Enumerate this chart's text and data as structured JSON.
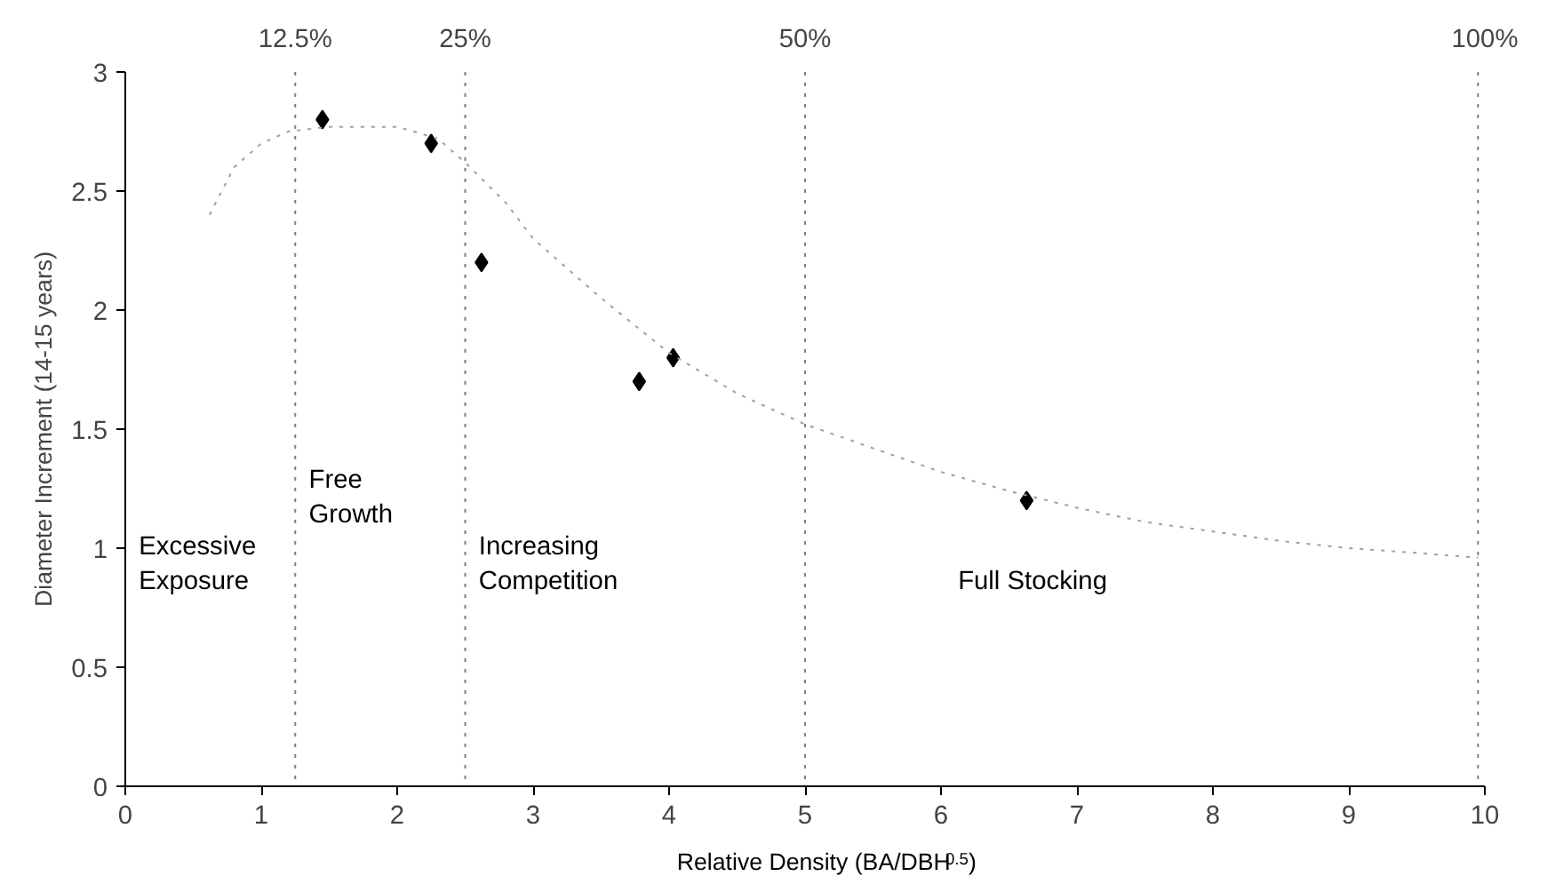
{
  "chart_data": {
    "type": "scatter",
    "xlabel": "Relative Density (BA/DBH$^{0.5}$)",
    "ylabel": "Diameter Increment (14-15 years)",
    "xlim": [
      0,
      10
    ],
    "ylim": [
      0,
      3
    ],
    "xticks": [
      0,
      1,
      2,
      3,
      4,
      5,
      6,
      7,
      8,
      9,
      10
    ],
    "yticks": [
      0,
      0.5,
      1,
      1.5,
      2,
      2.5,
      3
    ],
    "x2lim": [
      0,
      100
    ],
    "x2ticks": [
      {
        "value": 12.5,
        "label": "12.5%"
      },
      {
        "value": 25,
        "label": "25%"
      },
      {
        "value": 50,
        "label": "50%"
      },
      {
        "value": 100,
        "label": "100%"
      }
    ],
    "grid": false,
    "marker": "diamond",
    "series": [
      {
        "color": "#000000",
        "x": [
          1.45,
          2.25,
          2.62,
          3.78,
          4.03,
          6.63
        ],
        "values": [
          2.8,
          2.7,
          2.2,
          1.7,
          1.8,
          1.2
        ]
      },
      {
        "type": "line",
        "color": "#a0a0a0",
        "line_style": "dotted",
        "marker": "none",
        "x": [
          0.62,
          0.8,
          1.0,
          1.2,
          1.5,
          2.0,
          2.3,
          2.5,
          2.8,
          3.0,
          3.5,
          4.0,
          4.5,
          5.0,
          5.5,
          6.0,
          6.5,
          7.0,
          7.5,
          8.0,
          8.5,
          9.0,
          9.5,
          9.95
        ],
        "values": [
          2.4,
          2.6,
          2.7,
          2.75,
          2.77,
          2.77,
          2.72,
          2.62,
          2.45,
          2.3,
          2.05,
          1.82,
          1.65,
          1.52,
          1.42,
          1.32,
          1.24,
          1.17,
          1.11,
          1.07,
          1.03,
          1.0,
          0.98,
          0.96
        ]
      }
    ],
    "ref_lines": [
      {
        "axis": "x",
        "value": 1.25,
        "color": "#808080",
        "line_style": "dotted"
      },
      {
        "axis": "x",
        "value": 2.5,
        "color": "#808080",
        "line_style": "dotted"
      },
      {
        "axis": "x",
        "value": 5,
        "color": "#808080",
        "line_style": "dotted"
      },
      {
        "axis": "x",
        "value": 9.95,
        "color": "#808080",
        "line_style": "dotted"
      }
    ],
    "annotations": [
      "Excessive\nExposure",
      "Free\nGrowth",
      "Increasing\nCompetition",
      "Full Stocking"
    ]
  }
}
